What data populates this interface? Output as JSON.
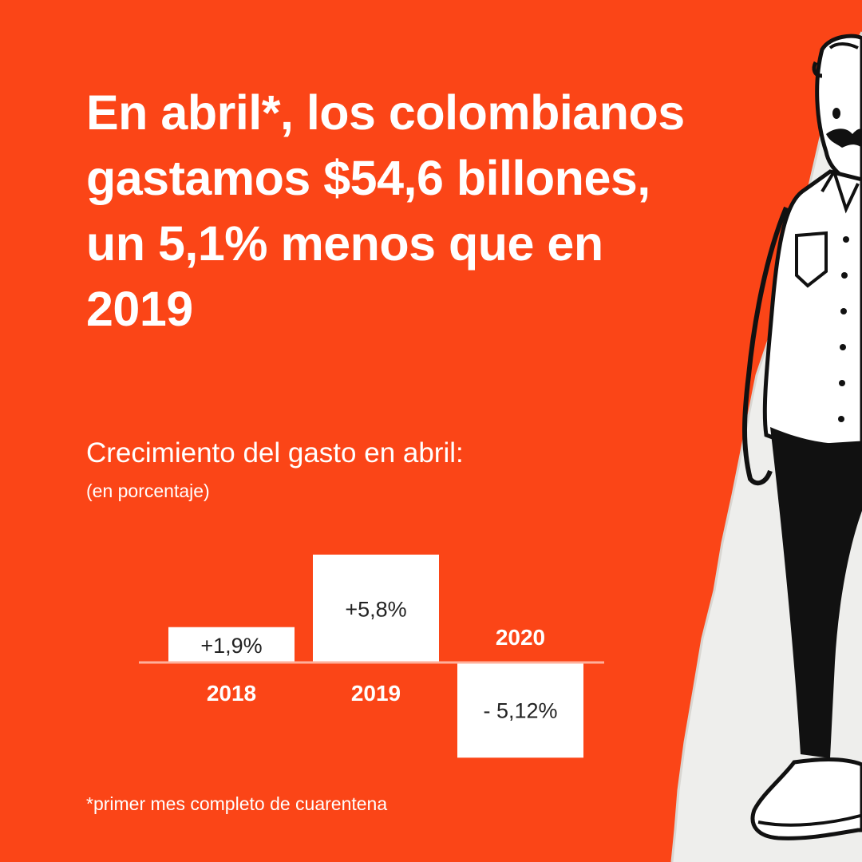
{
  "headline": "En abril*, los colombianos gastamos $54,6 billones, un 5,1% menos que en 2019",
  "footnote": "*primer mes completo de cuarentena",
  "colors": {
    "background": "#fb4517",
    "bar": "#ffffff",
    "baseline": "#ffb09b",
    "text": "#ffffff",
    "value_text": "#222222"
  },
  "chart_data": {
    "type": "bar",
    "title": "Crecimiento del gasto en abril:",
    "subtitle": "(en porcentaje)",
    "categories": [
      "2018",
      "2019",
      "2020"
    ],
    "values": [
      1.9,
      5.8,
      -5.12
    ],
    "value_labels": [
      "+1,9%",
      "+5,8%",
      "- 5,12%"
    ],
    "ylim": [
      -5.12,
      5.8
    ],
    "grid": false,
    "legend": "none"
  },
  "illustration": {
    "icon": "man-in-shirt-illustration"
  }
}
